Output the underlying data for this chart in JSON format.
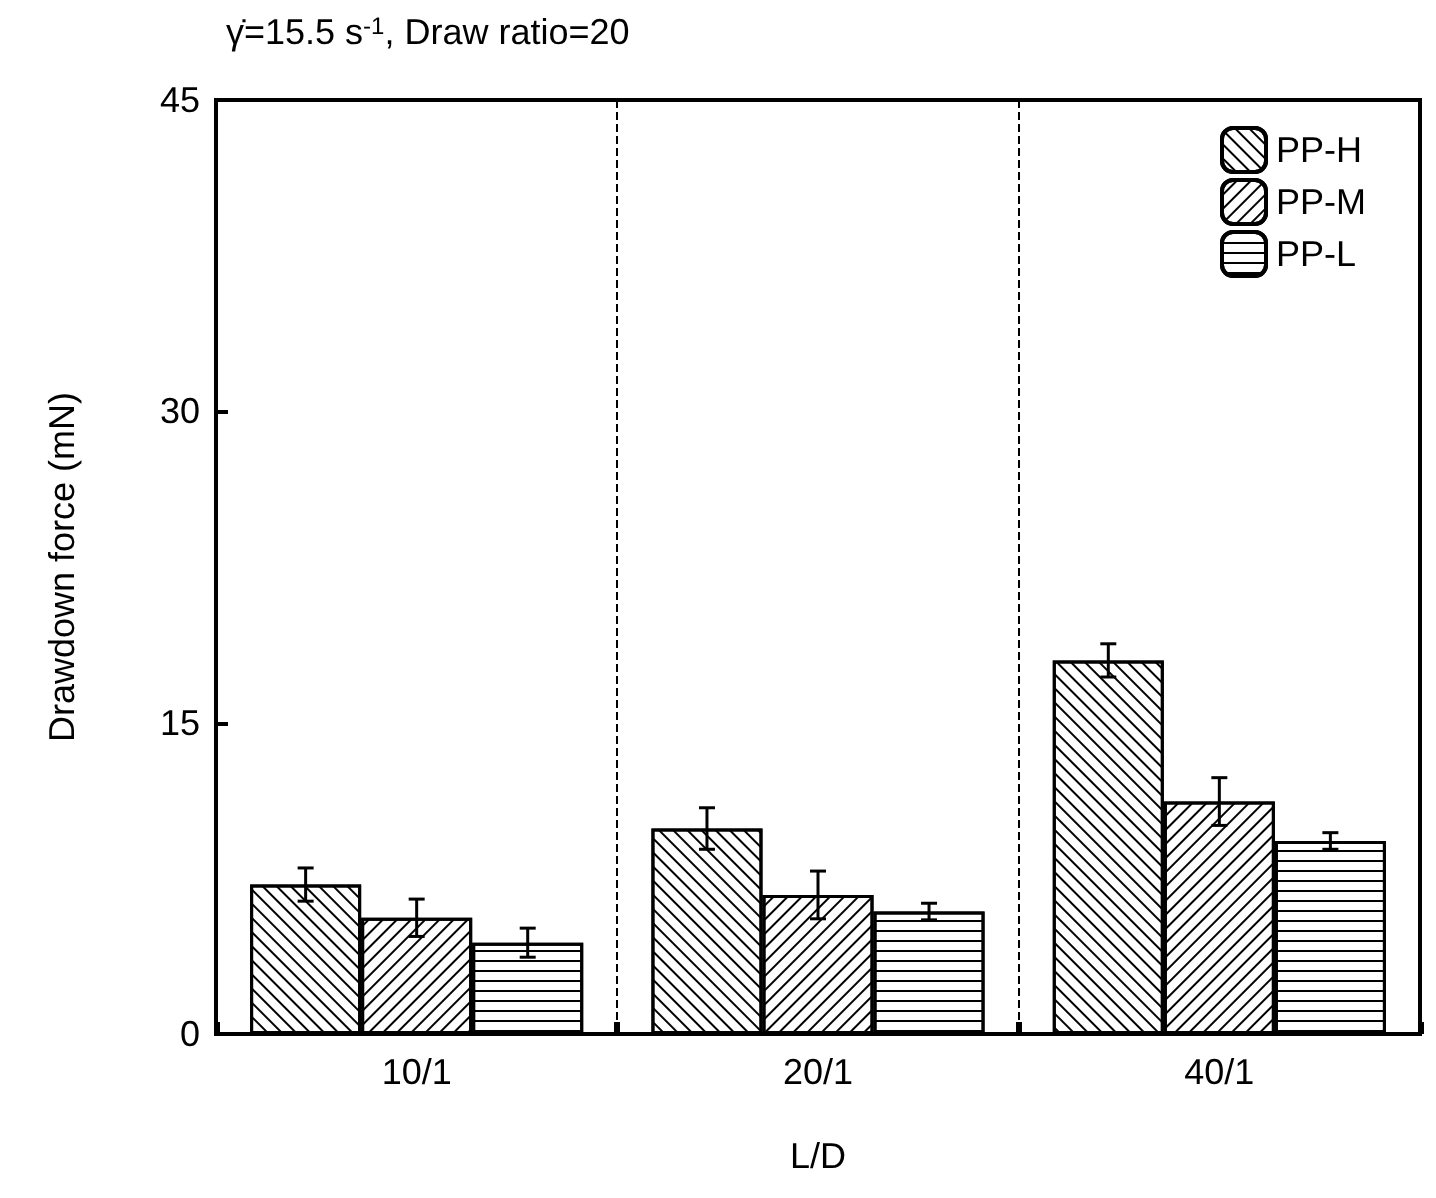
{
  "chart_data": {
    "type": "bar",
    "title": "γ̇=15.5 s$^{-1}$, Draw ratio=20",
    "xlabel": "L/D",
    "ylabel": "Drawdown force (mN)",
    "categories": [
      "10/1",
      "20/1",
      "40/1"
    ],
    "series": [
      {
        "name": "PP-H",
        "color": "#ffffff",
        "values": [
          7.2,
          9.9,
          18.0
        ],
        "errors": [
          0.8,
          1.0,
          0.8
        ]
      },
      {
        "name": "PP-M",
        "color": "#ffffff",
        "values": [
          5.6,
          6.7,
          11.2
        ],
        "errors": [
          0.9,
          1.15,
          1.15
        ]
      },
      {
        "name": "PP-L",
        "color": "#ffffff",
        "values": [
          4.4,
          5.9,
          9.3
        ],
        "errors": [
          0.7,
          0.4,
          0.4
        ]
      }
    ],
    "ylim": [
      0,
      45
    ],
    "yticks": [
      0,
      15,
      30,
      45
    ],
    "grid": "x",
    "legend": "top right"
  }
}
